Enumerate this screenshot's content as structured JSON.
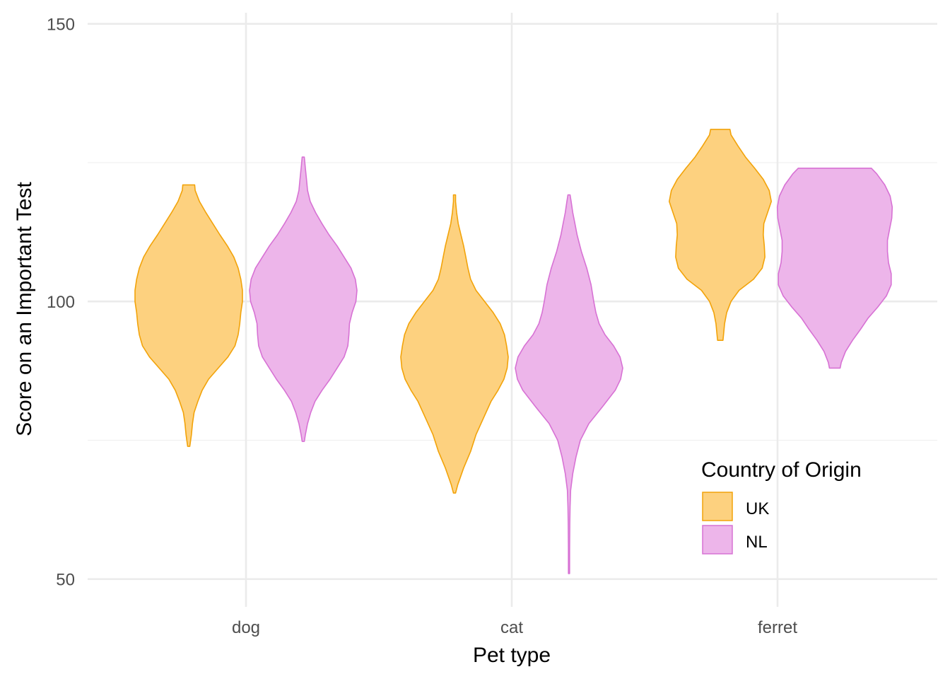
{
  "chart_data": {
    "type": "violin",
    "title": "",
    "xlabel": "Pet type",
    "ylabel": "Score on an Important Test",
    "categories": [
      "dog",
      "cat",
      "ferret"
    ],
    "ylim": [
      45,
      152
    ],
    "y_ticks": [
      50,
      100,
      150
    ],
    "y_minor_ticks": [
      75,
      125
    ],
    "grid": true,
    "legend": {
      "title": "Country of Origin",
      "placement": "bottom-right",
      "entries": [
        "UK",
        "NL"
      ]
    },
    "series": [
      {
        "name": "UK",
        "fill": "#FDD17F",
        "stroke": "#F2A30A",
        "violins": [
          {
            "category": "dog",
            "profile": [
              [
                73.9,
                0.02
              ],
              [
                76,
                0.05
              ],
              [
                78,
                0.07
              ],
              [
                80,
                0.1
              ],
              [
                82,
                0.17
              ],
              [
                84,
                0.25
              ],
              [
                86,
                0.37
              ],
              [
                88,
                0.55
              ],
              [
                90,
                0.73
              ],
              [
                92,
                0.86
              ],
              [
                94,
                0.92
              ],
              [
                96,
                0.95
              ],
              [
                98,
                0.97
              ],
              [
                100,
                1.0
              ],
              [
                102,
                1.0
              ],
              [
                104,
                0.97
              ],
              [
                106,
                0.92
              ],
              [
                108,
                0.84
              ],
              [
                110,
                0.72
              ],
              [
                112,
                0.58
              ],
              [
                114,
                0.45
              ],
              [
                116,
                0.32
              ],
              [
                118,
                0.2
              ],
              [
                120,
                0.12
              ],
              [
                121,
                0.11
              ]
            ]
          },
          {
            "category": "cat",
            "profile": [
              [
                65.5,
                0.02
              ],
              [
                67,
                0.06
              ],
              [
                70,
                0.17
              ],
              [
                73,
                0.3
              ],
              [
                76,
                0.4
              ],
              [
                79,
                0.54
              ],
              [
                82,
                0.68
              ],
              [
                84,
                0.81
              ],
              [
                86,
                0.92
              ],
              [
                88,
                0.98
              ],
              [
                90,
                1.0
              ],
              [
                92,
                0.97
              ],
              [
                94,
                0.93
              ],
              [
                96,
                0.85
              ],
              [
                98,
                0.72
              ],
              [
                100,
                0.56
              ],
              [
                102,
                0.4
              ],
              [
                104,
                0.3
              ],
              [
                106,
                0.25
              ],
              [
                108,
                0.21
              ],
              [
                110,
                0.17
              ],
              [
                112,
                0.12
              ],
              [
                114,
                0.07
              ],
              [
                116,
                0.04
              ],
              [
                118,
                0.02
              ],
              [
                119.2,
                0.02
              ]
            ]
          },
          {
            "category": "ferret",
            "profile": [
              [
                93,
                0.05
              ],
              [
                94,
                0.06
              ],
              [
                96,
                0.08
              ],
              [
                98,
                0.12
              ],
              [
                100,
                0.2
              ],
              [
                102,
                0.35
              ],
              [
                104,
                0.62
              ],
              [
                106,
                0.78
              ],
              [
                108,
                0.83
              ],
              [
                110,
                0.82
              ],
              [
                112,
                0.8
              ],
              [
                114,
                0.81
              ],
              [
                116,
                0.88
              ],
              [
                118,
                0.95
              ],
              [
                120,
                0.91
              ],
              [
                122,
                0.8
              ],
              [
                124,
                0.64
              ],
              [
                126,
                0.47
              ],
              [
                128,
                0.33
              ],
              [
                130,
                0.2
              ],
              [
                131,
                0.18
              ]
            ]
          }
        ]
      },
      {
        "name": "NL",
        "fill": "#EDB5EA",
        "stroke": "#D772D4",
        "violins": [
          {
            "category": "dog",
            "profile": [
              [
                74.8,
                0.02
              ],
              [
                76,
                0.04
              ],
              [
                78,
                0.08
              ],
              [
                80,
                0.14
              ],
              [
                82,
                0.22
              ],
              [
                84,
                0.35
              ],
              [
                86,
                0.5
              ],
              [
                88,
                0.63
              ],
              [
                90,
                0.76
              ],
              [
                92,
                0.83
              ],
              [
                94,
                0.85
              ],
              [
                96,
                0.86
              ],
              [
                98,
                0.91
              ],
              [
                100,
                0.98
              ],
              [
                102,
                1.0
              ],
              [
                104,
                0.97
              ],
              [
                106,
                0.89
              ],
              [
                108,
                0.76
              ],
              [
                110,
                0.63
              ],
              [
                112,
                0.48
              ],
              [
                114,
                0.35
              ],
              [
                116,
                0.23
              ],
              [
                118,
                0.13
              ],
              [
                120,
                0.08
              ],
              [
                122,
                0.06
              ],
              [
                124,
                0.04
              ],
              [
                126,
                0.02
              ]
            ]
          },
          {
            "category": "cat",
            "profile": [
              [
                51,
                0.01
              ],
              [
                55,
                0.01
              ],
              [
                60,
                0.015
              ],
              [
                63,
                0.02
              ],
              [
                66,
                0.03
              ],
              [
                69,
                0.07
              ],
              [
                72,
                0.13
              ],
              [
                75,
                0.21
              ],
              [
                78,
                0.37
              ],
              [
                81,
                0.62
              ],
              [
                84,
                0.86
              ],
              [
                86,
                0.96
              ],
              [
                88,
                1.0
              ],
              [
                90,
                0.95
              ],
              [
                92,
                0.83
              ],
              [
                94,
                0.67
              ],
              [
                96,
                0.56
              ],
              [
                98,
                0.5
              ],
              [
                100,
                0.46
              ],
              [
                103,
                0.41
              ],
              [
                106,
                0.33
              ],
              [
                109,
                0.23
              ],
              [
                112,
                0.15
              ],
              [
                114,
                0.11
              ],
              [
                116,
                0.07
              ],
              [
                118,
                0.04
              ],
              [
                119.2,
                0.02
              ]
            ]
          },
          {
            "category": "ferret",
            "profile": [
              [
                88,
                0.1
              ],
              [
                89,
                0.12
              ],
              [
                91,
                0.2
              ],
              [
                93,
                0.33
              ],
              [
                95,
                0.48
              ],
              [
                97,
                0.62
              ],
              [
                99,
                0.8
              ],
              [
                101,
                0.96
              ],
              [
                103,
                1.05
              ],
              [
                105,
                1.05
              ],
              [
                107,
                1.0
              ],
              [
                109,
                0.98
              ],
              [
                111,
                0.98
              ],
              [
                113,
                1.02
              ],
              [
                115,
                1.06
              ],
              [
                117,
                1.07
              ],
              [
                119,
                1.03
              ],
              [
                121,
                0.93
              ],
              [
                123,
                0.78
              ],
              [
                124,
                0.68
              ]
            ]
          }
        ]
      }
    ]
  }
}
